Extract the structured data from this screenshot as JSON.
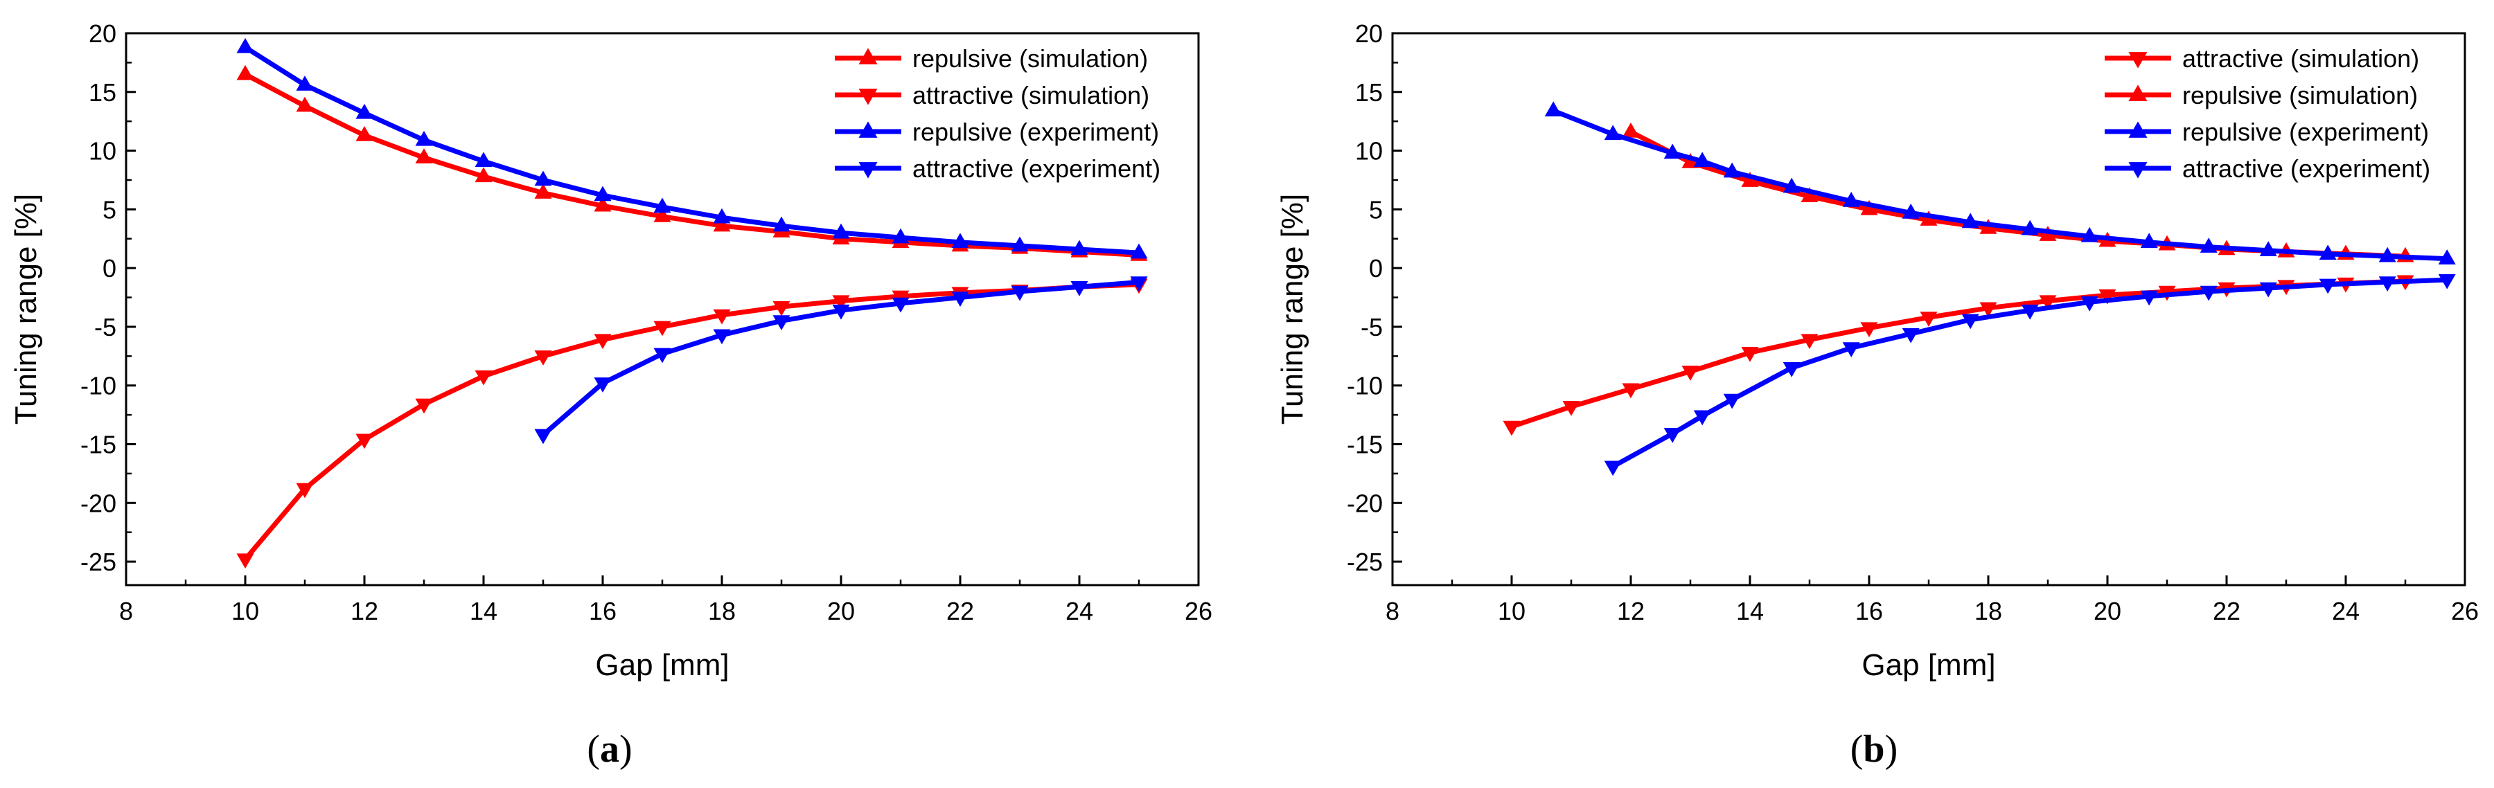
{
  "chart_data": [
    {
      "type": "line",
      "caption_open": "(",
      "caption": "a",
      "caption_close": ")",
      "xlabel": "Gap [mm]",
      "ylabel": "Tuning range [%]",
      "xlim": [
        8,
        26
      ],
      "ylim": [
        -27,
        20
      ],
      "xticks": [
        8,
        10,
        12,
        14,
        16,
        18,
        20,
        22,
        24,
        26
      ],
      "yticks": [
        20,
        15,
        10,
        5,
        0,
        -5,
        -10,
        -15,
        -20,
        -25
      ],
      "legend_position": "top-right",
      "series": [
        {
          "name": "repulsive (simulation)",
          "color": "#ff0000",
          "marker": "triangle-up",
          "x": [
            10,
            11,
            12,
            13,
            14,
            15,
            16,
            17,
            18,
            19,
            20,
            21,
            22,
            23,
            24,
            25
          ],
          "y": [
            16.5,
            13.8,
            11.3,
            9.4,
            7.8,
            6.4,
            5.3,
            4.4,
            3.6,
            3.1,
            2.5,
            2.2,
            1.9,
            1.7,
            1.4,
            1.1
          ]
        },
        {
          "name": "attractive (simulation)",
          "color": "#ff0000",
          "marker": "triangle-down",
          "x": [
            10,
            11,
            12,
            13,
            14,
            15,
            16,
            17,
            18,
            19,
            20,
            21,
            22,
            23,
            24,
            25
          ],
          "y": [
            -24.8,
            -18.8,
            -14.6,
            -11.6,
            -9.2,
            -7.5,
            -6.1,
            -5.0,
            -4.0,
            -3.3,
            -2.8,
            -2.4,
            -2.1,
            -1.9,
            -1.6,
            -1.4
          ]
        },
        {
          "name": "repulsive (experiment)",
          "color": "#0000ff",
          "marker": "triangle-up",
          "x": [
            10,
            11,
            12,
            13,
            14,
            15,
            16,
            17,
            18,
            19,
            20,
            21,
            22,
            23,
            24,
            25
          ],
          "y": [
            18.8,
            15.6,
            13.2,
            10.9,
            9.1,
            7.5,
            6.2,
            5.2,
            4.3,
            3.6,
            3.0,
            2.6,
            2.2,
            1.9,
            1.6,
            1.3
          ]
        },
        {
          "name": "attractive (experiment)",
          "color": "#0000ff",
          "marker": "triangle-down",
          "x": [
            15,
            16,
            17,
            18,
            19,
            20,
            21,
            22,
            23,
            24,
            25
          ],
          "y": [
            -14.2,
            -9.8,
            -7.3,
            -5.7,
            -4.5,
            -3.6,
            -3.0,
            -2.5,
            -2.0,
            -1.6,
            -1.2
          ]
        }
      ]
    },
    {
      "type": "line",
      "caption_open": "(",
      "caption": "b",
      "caption_close": ")",
      "xlabel": "Gap [mm]",
      "ylabel": "Tuning range [%]",
      "xlim": [
        8,
        26
      ],
      "ylim": [
        -27,
        20
      ],
      "xticks": [
        8,
        10,
        12,
        14,
        16,
        18,
        20,
        22,
        24,
        26
      ],
      "yticks": [
        20,
        15,
        10,
        5,
        0,
        -5,
        -10,
        -15,
        -20,
        -25
      ],
      "legend_position": "top-right",
      "series": [
        {
          "name": "attractive (simulation)",
          "color": "#ff0000",
          "marker": "triangle-down",
          "x": [
            10,
            11,
            12,
            13,
            14,
            15,
            16,
            17,
            18,
            19,
            20,
            21,
            22,
            23,
            24,
            25
          ],
          "y": [
            -13.5,
            -11.8,
            -10.3,
            -8.8,
            -7.2,
            -6.1,
            -5.1,
            -4.2,
            -3.4,
            -2.8,
            -2.3,
            -2.0,
            -1.7,
            -1.5,
            -1.3,
            -1.1
          ]
        },
        {
          "name": "repulsive (simulation)",
          "color": "#ff0000",
          "marker": "triangle-up",
          "x": [
            12,
            13,
            14,
            15,
            16,
            17,
            18,
            19,
            20,
            21,
            22,
            23,
            24,
            25
          ],
          "y": [
            11.6,
            9.0,
            7.4,
            6.1,
            5.0,
            4.1,
            3.4,
            2.8,
            2.3,
            2.0,
            1.6,
            1.4,
            1.2,
            1.0
          ]
        },
        {
          "name": "repulsive (experiment)",
          "color": "#0000ff",
          "marker": "triangle-up",
          "x": [
            10.7,
            11.7,
            12.7,
            13.2,
            13.7,
            14.7,
            15.7,
            16.7,
            17.7,
            18.7,
            19.7,
            20.7,
            21.7,
            22.7,
            23.7,
            24.7,
            25.7
          ],
          "y": [
            13.4,
            11.4,
            9.8,
            9.1,
            8.2,
            6.9,
            5.7,
            4.7,
            3.9,
            3.3,
            2.7,
            2.2,
            1.8,
            1.5,
            1.2,
            1.0,
            0.8
          ]
        },
        {
          "name": "attractive (experiment)",
          "color": "#0000ff",
          "marker": "triangle-down",
          "x": [
            11.7,
            12.7,
            13.2,
            13.7,
            14.7,
            15.7,
            16.7,
            17.7,
            18.7,
            19.7,
            20.7,
            21.7,
            22.7,
            23.7,
            24.7,
            25.7
          ],
          "y": [
            -16.9,
            -14.1,
            -12.6,
            -11.2,
            -8.5,
            -6.8,
            -5.6,
            -4.4,
            -3.6,
            -2.9,
            -2.4,
            -2.0,
            -1.7,
            -1.4,
            -1.2,
            -1.0
          ]
        }
      ]
    }
  ]
}
